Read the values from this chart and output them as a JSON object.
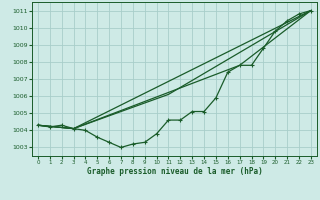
{
  "title": "Graphe pression niveau de la mer (hPa)",
  "bg_color": "#ceeae6",
  "grid_color": "#a8ceca",
  "line_color": "#1a5c2a",
  "xlim": [
    -0.5,
    23.5
  ],
  "ylim": [
    1002.5,
    1011.5
  ],
  "xticks": [
    0,
    1,
    2,
    3,
    4,
    5,
    6,
    7,
    8,
    9,
    10,
    11,
    12,
    13,
    14,
    15,
    16,
    17,
    18,
    19,
    20,
    21,
    22,
    23
  ],
  "yticks": [
    1003,
    1004,
    1005,
    1006,
    1007,
    1008,
    1009,
    1010,
    1011
  ],
  "series1_x": [
    0,
    1,
    2,
    3,
    4,
    5,
    6,
    7,
    8,
    9,
    10,
    11,
    12,
    13,
    14,
    15,
    16,
    17,
    18,
    19,
    20,
    21,
    22,
    23
  ],
  "series1_y": [
    1004.3,
    1004.2,
    1004.3,
    1004.1,
    1004.0,
    1003.6,
    1003.3,
    1003.0,
    1003.2,
    1003.3,
    1003.8,
    1004.6,
    1004.6,
    1005.1,
    1005.1,
    1005.9,
    1007.4,
    1007.8,
    1007.8,
    1008.8,
    1009.8,
    1010.4,
    1010.8,
    1011.0
  ],
  "series2_x": [
    0,
    3,
    23
  ],
  "series2_y": [
    1004.3,
    1004.1,
    1011.0
  ],
  "series3_x": [
    0,
    3,
    11,
    23
  ],
  "series3_y": [
    1004.3,
    1004.1,
    1006.1,
    1011.0
  ],
  "series4_x": [
    0,
    3,
    17,
    23
  ],
  "series4_y": [
    1004.3,
    1004.1,
    1007.8,
    1011.0
  ]
}
